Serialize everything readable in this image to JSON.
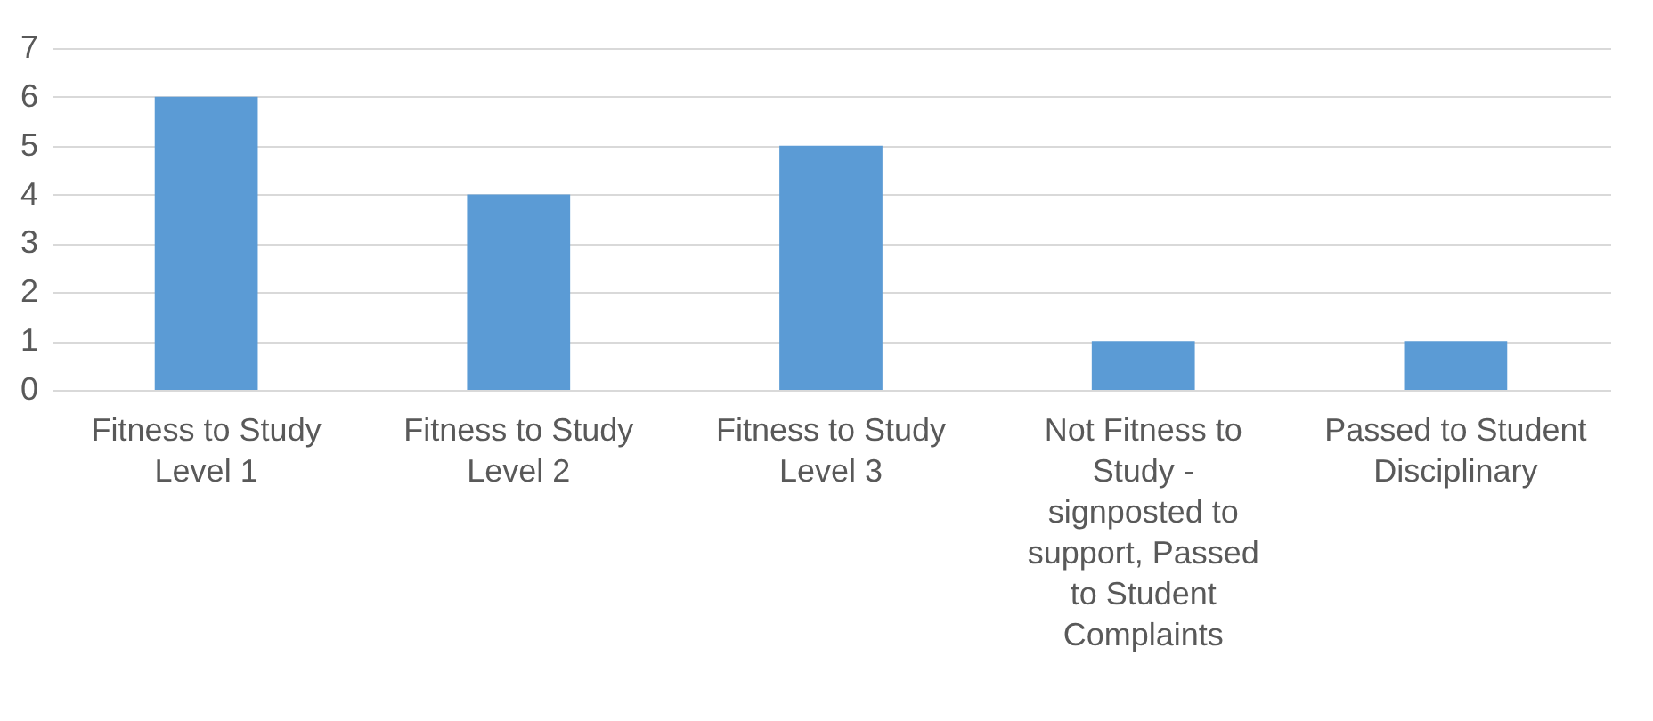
{
  "chart_data": {
    "type": "bar",
    "categories": [
      "Fitness to Study Level 1",
      "Fitness to Study Level 2",
      "Fitness to Study Level 3",
      "Not Fitness to Study - signposted to support, Passed to Student Complaints",
      "Passed to Student Disciplinary"
    ],
    "values": [
      6,
      4,
      5,
      1,
      1
    ],
    "color": "#5b9bd5",
    "ylim": [
      0,
      7
    ],
    "yticks": [
      0,
      1,
      2,
      3,
      4,
      5,
      6,
      7
    ],
    "grid": "y"
  }
}
